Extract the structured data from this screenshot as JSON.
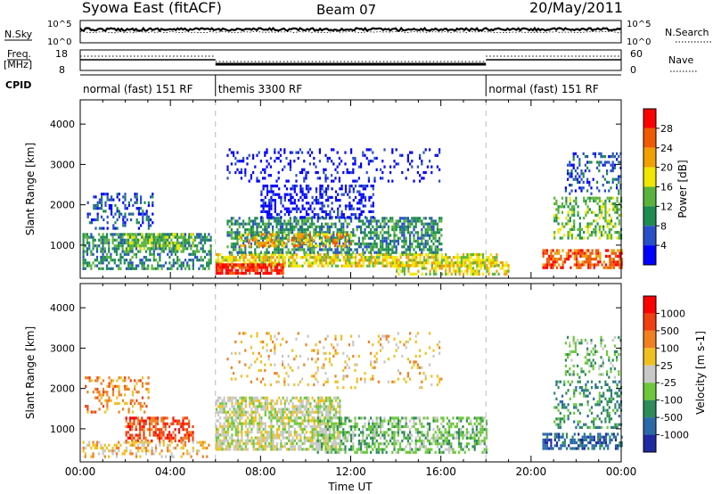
{
  "header": {
    "station": "Syowa East (fitACF)",
    "beam": "Beam 07",
    "date": "20/May/2011"
  },
  "top_panel": {
    "left_label": "N.Sky",
    "right_label": "N.Search",
    "tick_top": "10^5",
    "tick_bottom": "10^0"
  },
  "freq_panel": {
    "left_label_1": "Freq.",
    "left_label_2": "[MHz]",
    "right_label": "Nave",
    "left_tick_top": "18",
    "left_tick_bottom": "8",
    "right_tick_top": "60",
    "right_tick_bottom": "0"
  },
  "cpid": {
    "label": "CPID",
    "segments": [
      {
        "text": "normal (fast) 151 RF",
        "start_hour": 0,
        "end_hour": 6
      },
      {
        "text": "themis 3300 RF",
        "start_hour": 6,
        "end_hour": 18
      },
      {
        "text": "normal (fast) 151 RF",
        "start_hour": 18,
        "end_hour": 24
      }
    ]
  },
  "chart_data": [
    {
      "type": "heatmap",
      "title": "",
      "ylabel": "Slant Range [km]",
      "xlabel": "",
      "xlim": [
        0,
        24
      ],
      "ylim": [
        180,
        4600
      ],
      "yticks": [
        1000,
        2000,
        3000,
        4000
      ],
      "colorbar": {
        "label": "Power [dB]",
        "tick_labels": [
          "4",
          "8",
          "12",
          "16",
          "20",
          "24",
          "28"
        ],
        "colors": [
          "#0000ff",
          "#2850c8",
          "#1e8c50",
          "#5ab43c",
          "#f0e600",
          "#f0a000",
          "#f05a00",
          "#ff0000"
        ]
      },
      "regions": [
        {
          "t0": 0.1,
          "t1": 5.8,
          "r0": 400,
          "r1": 1300,
          "level": 2,
          "density": 0.55
        },
        {
          "t0": 0.3,
          "t1": 3.2,
          "r0": 1400,
          "r1": 2300,
          "level": 1,
          "density": 0.35
        },
        {
          "t0": 2.0,
          "t1": 5.0,
          "r0": 900,
          "r1": 1300,
          "level": 3,
          "density": 0.6
        },
        {
          "t0": 6.0,
          "t1": 18.5,
          "r0": 500,
          "r1": 800,
          "level": 4,
          "density": 0.75
        },
        {
          "t0": 6.0,
          "t1": 9.0,
          "r0": 300,
          "r1": 550,
          "level": 7,
          "density": 0.8
        },
        {
          "t0": 6.5,
          "t1": 16.0,
          "r0": 800,
          "r1": 1700,
          "level": 2,
          "density": 0.6
        },
        {
          "t0": 7.0,
          "t1": 12.0,
          "r0": 1000,
          "r1": 1300,
          "level": 5,
          "density": 0.5
        },
        {
          "t0": 8.0,
          "t1": 13.0,
          "r0": 1700,
          "r1": 2500,
          "level": 0,
          "density": 0.45
        },
        {
          "t0": 6.5,
          "t1": 16.0,
          "r0": 2600,
          "r1": 3400,
          "level": 0,
          "density": 0.2
        },
        {
          "t0": 14.0,
          "t1": 19.0,
          "r0": 300,
          "r1": 600,
          "level": 4,
          "density": 0.55
        },
        {
          "t0": 20.5,
          "t1": 24.0,
          "r0": 450,
          "r1": 900,
          "level": 6,
          "density": 0.6
        },
        {
          "t0": 21.0,
          "t1": 24.0,
          "r0": 1200,
          "r1": 2200,
          "level": 3,
          "density": 0.4
        },
        {
          "t0": 21.5,
          "t1": 24.0,
          "r0": 2300,
          "r1": 3300,
          "level": 1,
          "density": 0.3
        }
      ]
    },
    {
      "type": "heatmap",
      "title": "",
      "ylabel": "Slant Range [km]",
      "xlabel": "Time UT",
      "xlim": [
        0,
        24
      ],
      "ylim": [
        180,
        4600
      ],
      "yticks": [
        1000,
        2000,
        3000,
        4000
      ],
      "xtick_labels": [
        "00:00",
        "04:00",
        "08:00",
        "12:00",
        "16:00",
        "20:00",
        "00:00"
      ],
      "xticks": [
        0,
        4,
        8,
        12,
        16,
        20,
        24
      ],
      "colorbar": {
        "label": "Velocity [m s-1]",
        "tick_labels": [
          "1000",
          "500",
          "100",
          "25",
          "-25",
          "-100",
          "-500",
          "-1000"
        ],
        "colors": [
          "#1e2aa0",
          "#2a6aa8",
          "#2e8c5a",
          "#6cc83a",
          "#c8c8c8",
          "#f0c020",
          "#f08020",
          "#f04010",
          "#ff0000"
        ]
      },
      "regions": [
        {
          "t0": 2.0,
          "t1": 5.0,
          "r0": 700,
          "r1": 1300,
          "level": 7,
          "density": 0.6
        },
        {
          "t0": 0.2,
          "t1": 3.0,
          "r0": 1400,
          "r1": 2300,
          "level": 6,
          "density": 0.3
        },
        {
          "t0": 0.1,
          "t1": 5.8,
          "r0": 300,
          "r1": 700,
          "level": 5,
          "density": 0.35
        },
        {
          "t0": 6.0,
          "t1": 11.5,
          "r0": 500,
          "r1": 1800,
          "level": 4,
          "density": 0.7
        },
        {
          "t0": 10.5,
          "t1": 18.0,
          "r0": 400,
          "r1": 1300,
          "level": 3,
          "density": 0.55
        },
        {
          "t0": 6.5,
          "t1": 16.0,
          "r0": 2000,
          "r1": 3400,
          "level": 5,
          "density": 0.12
        },
        {
          "t0": 20.5,
          "t1": 24.0,
          "r0": 500,
          "r1": 900,
          "level": 1,
          "density": 0.55
        },
        {
          "t0": 21.0,
          "t1": 24.0,
          "r0": 1000,
          "r1": 2200,
          "level": 2,
          "density": 0.35
        },
        {
          "t0": 21.5,
          "t1": 24.0,
          "r0": 2300,
          "r1": 3300,
          "level": 3,
          "density": 0.25
        }
      ]
    }
  ]
}
